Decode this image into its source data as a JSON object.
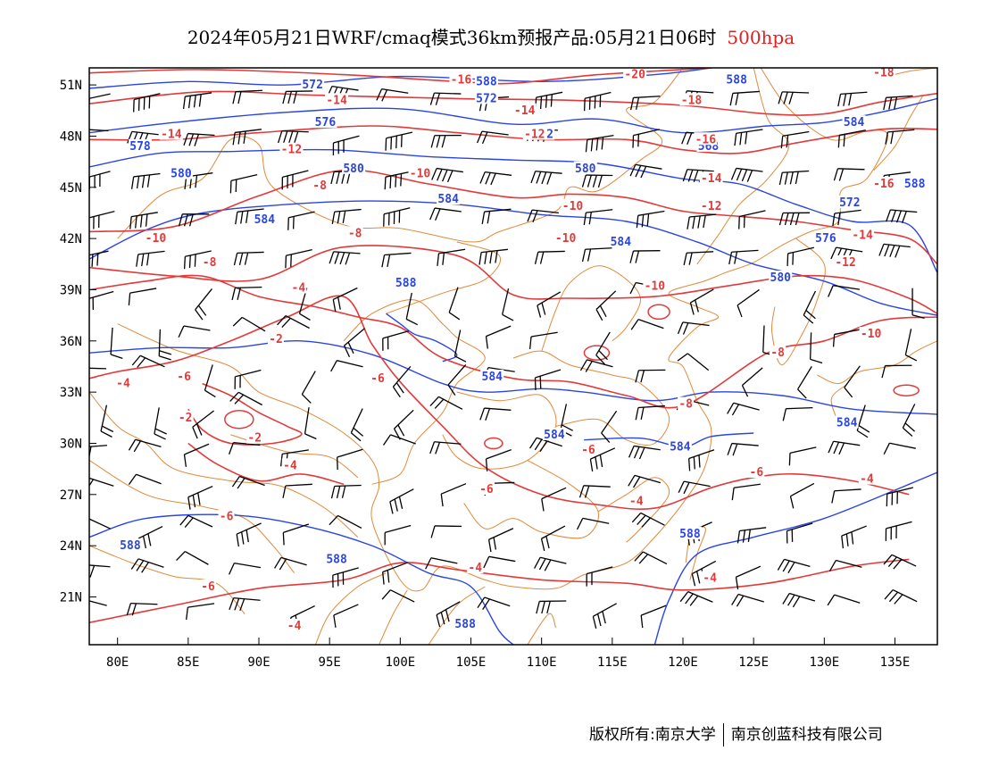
{
  "title": {
    "main": "2024年05月21日WRF/cmaq模式36km预报产品:05月21日06时",
    "level": "500hpa"
  },
  "colors": {
    "height_contour": "#2a45e0",
    "temperature_contour": "#e23a3a",
    "boundary": "#e08a3a",
    "wind_barb": "#000000",
    "level_text": "#e02020"
  },
  "map": {
    "lon_ticks": [
      "80E",
      "85E",
      "90E",
      "95E",
      "100E",
      "105E",
      "110E",
      "115E",
      "120E",
      "125E",
      "130E",
      "135E"
    ],
    "lat_ticks": [
      "51N",
      "48N",
      "45N",
      "42N",
      "39N",
      "36N",
      "33N",
      "30N",
      "27N",
      "24N",
      "21N"
    ],
    "lon_values": [
      80,
      85,
      90,
      95,
      100,
      105,
      110,
      115,
      120,
      125,
      130,
      135
    ],
    "lat_values": [
      51,
      48,
      45,
      42,
      39,
      36,
      33,
      30,
      27,
      24,
      21
    ],
    "lon_range": [
      78,
      138
    ],
    "lat_range": [
      18.2,
      52
    ]
  },
  "height_contours": [
    {
      "label": "572",
      "points": [
        [
          78,
          50.8
        ],
        [
          85,
          51.2
        ],
        [
          92,
          51
        ],
        [
          100,
          51.5
        ],
        [
          110,
          51.2
        ],
        [
          118,
          51.6
        ],
        [
          122,
          52
        ]
      ]
    },
    {
      "label": "576",
      "points": [
        [
          78,
          48.2
        ],
        [
          84,
          48.8
        ],
        [
          92,
          49.4
        ],
        [
          100,
          49.6
        ],
        [
          108,
          48.7
        ],
        [
          114,
          49
        ],
        [
          120,
          48.2
        ],
        [
          126,
          48.6
        ],
        [
          130,
          48.8
        ],
        [
          134,
          49.4
        ],
        [
          138,
          50.2
        ]
      ]
    },
    {
      "label": "580",
      "points": [
        [
          78,
          46.2
        ],
        [
          83,
          47
        ],
        [
          88,
          47.1
        ],
        [
          95,
          47.2
        ],
        [
          102,
          46.8
        ],
        [
          108,
          46.6
        ],
        [
          114,
          46.4
        ],
        [
          120,
          45.5
        ],
        [
          124,
          45.2
        ],
        [
          128,
          44
        ],
        [
          132,
          43
        ],
        [
          136,
          42.8
        ],
        [
          138,
          40
        ]
      ]
    },
    {
      "label": "584",
      "points": [
        [
          78,
          40.8
        ],
        [
          82,
          42.5
        ],
        [
          86,
          43.5
        ],
        [
          92,
          44
        ],
        [
          98,
          44.2
        ],
        [
          104,
          44
        ],
        [
          110,
          43.4
        ],
        [
          116,
          43
        ],
        [
          121,
          41.8
        ],
        [
          125,
          40.5
        ],
        [
          130,
          39.5
        ],
        [
          134,
          38.2
        ],
        [
          138,
          37.5
        ]
      ]
    },
    {
      "label": "588",
      "points": [
        [
          99,
          37.6
        ],
        [
          100,
          37
        ],
        [
          101,
          36.4
        ],
        [
          102.5,
          36
        ],
        [
          104,
          35.2
        ],
        [
          103,
          34.8
        ]
      ]
    },
    {
      "label": "584",
      "points": [
        [
          78,
          35.3
        ],
        [
          83,
          35.6
        ],
        [
          88,
          35.6
        ],
        [
          93,
          36
        ],
        [
          98,
          35.2
        ],
        [
          103,
          33.5
        ],
        [
          106,
          33
        ],
        [
          110,
          33.2
        ],
        [
          113,
          33
        ],
        [
          118,
          32.5
        ],
        [
          122,
          33
        ],
        [
          127,
          32.8
        ],
        [
          132,
          32
        ],
        [
          138,
          31.7
        ]
      ]
    },
    {
      "label": "584",
      "points": [
        [
          113,
          30.2
        ],
        [
          117,
          30.3
        ],
        [
          120,
          29.8
        ],
        [
          122,
          30.4
        ],
        [
          125,
          30.6
        ]
      ]
    },
    {
      "label": "588",
      "points": [
        [
          78,
          24.5
        ],
        [
          82,
          25.6
        ],
        [
          88,
          25.8
        ],
        [
          93,
          25.2
        ],
        [
          98,
          24
        ],
        [
          102,
          22.4
        ],
        [
          105,
          21.6
        ],
        [
          107,
          19
        ],
        [
          108,
          18.2
        ]
      ]
    },
    {
      "label": "588",
      "points": [
        [
          118,
          18.2
        ],
        [
          119,
          20.8
        ],
        [
          121,
          23.5
        ],
        [
          125,
          24.5
        ],
        [
          130,
          25.6
        ],
        [
          136,
          27.6
        ],
        [
          138,
          28.3
        ]
      ]
    }
  ],
  "temperature_contours": [
    {
      "label": "-16",
      "points": [
        [
          78,
          51.7
        ],
        [
          86,
          51.9
        ],
        [
          96,
          51.6
        ],
        [
          104,
          51.2
        ],
        [
          108,
          51.1
        ],
        [
          114,
          51.6
        ],
        [
          122,
          52
        ]
      ]
    },
    {
      "label": "-14",
      "points": [
        [
          78,
          49.9
        ],
        [
          86,
          50.6
        ],
        [
          94,
          50.4
        ],
        [
          104,
          50.2
        ],
        [
          112,
          50.1
        ],
        [
          120,
          49.8
        ],
        [
          126,
          49.3
        ],
        [
          130,
          49.3
        ],
        [
          134,
          50
        ],
        [
          138,
          50.5
        ]
      ]
    },
    {
      "label": "-12",
      "points": [
        [
          78,
          47.8
        ],
        [
          84,
          47.8
        ],
        [
          90,
          48.2
        ],
        [
          98,
          48.6
        ],
        [
          104,
          48.2
        ],
        [
          110,
          47.8
        ],
        [
          116,
          47.8
        ],
        [
          120,
          47.2
        ],
        [
          124,
          47
        ],
        [
          128,
          47.6
        ],
        [
          134,
          48.4
        ],
        [
          138,
          48.4
        ]
      ]
    },
    {
      "label": "-10",
      "points": [
        [
          78,
          42.4
        ],
        [
          84,
          42.7
        ],
        [
          90,
          44.5
        ],
        [
          96,
          46
        ],
        [
          102,
          45.2
        ],
        [
          108,
          44.4
        ],
        [
          112,
          44.6
        ],
        [
          116,
          44.4
        ],
        [
          120,
          43.6
        ],
        [
          124,
          43.3
        ],
        [
          128,
          43
        ],
        [
          132,
          42.5
        ],
        [
          136,
          42
        ],
        [
          138,
          40.5
        ]
      ]
    },
    {
      "label": "-8",
      "points": [
        [
          78,
          40.3
        ],
        [
          84,
          39.8
        ],
        [
          90,
          39.6
        ],
        [
          96,
          41.5
        ],
        [
          104,
          41
        ],
        [
          108,
          38.7
        ],
        [
          112,
          38.5
        ],
        [
          118,
          38.6
        ],
        [
          123,
          39.2
        ],
        [
          128,
          39.8
        ],
        [
          132,
          39.6
        ],
        [
          136,
          38.5
        ],
        [
          138,
          37.6
        ]
      ]
    },
    {
      "label": "-6",
      "points": [
        [
          78,
          39
        ],
        [
          82,
          39.5
        ],
        [
          86,
          39.8
        ],
        [
          90,
          38.6
        ],
        [
          94,
          38
        ],
        [
          97,
          37.4
        ],
        [
          100,
          36.8
        ],
        [
          103,
          35
        ],
        [
          108,
          33.8
        ],
        [
          112,
          33.6
        ],
        [
          116,
          32.8
        ],
        [
          120,
          32.2
        ],
        [
          126,
          35.3
        ],
        [
          130,
          36
        ],
        [
          134,
          37.2
        ],
        [
          138,
          37.4
        ]
      ]
    },
    {
      "label": "-4",
      "points": [
        [
          78,
          33.8
        ],
        [
          80,
          34.2
        ],
        [
          84,
          34.8
        ],
        [
          88,
          36
        ],
        [
          92,
          37.4
        ],
        [
          96,
          38.6
        ],
        [
          98,
          35.8
        ],
        [
          100,
          33.6
        ],
        [
          103,
          31
        ],
        [
          106,
          28.6
        ],
        [
          110,
          27
        ],
        [
          114,
          26.4
        ],
        [
          118,
          26.2
        ],
        [
          122,
          27.4
        ],
        [
          125,
          28
        ],
        [
          128,
          28.2
        ],
        [
          132,
          27.8
        ],
        [
          136,
          27
        ]
      ]
    },
    {
      "label": "-2",
      "points": [
        [
          86,
          33.5
        ],
        [
          88,
          32.8
        ],
        [
          90,
          31.8
        ],
        [
          92,
          31
        ],
        [
          93,
          30.5
        ],
        [
          91,
          30
        ],
        [
          88,
          30
        ],
        [
          86,
          30.8
        ],
        [
          85,
          32
        ]
      ]
    },
    {
      "label": "-4",
      "points": [
        [
          85,
          30
        ],
        [
          87,
          28.8
        ],
        [
          90,
          27.8
        ],
        [
          93,
          28.2
        ],
        [
          96,
          27.6
        ]
      ]
    },
    {
      "label": "-4",
      "points": [
        [
          78,
          19.5
        ],
        [
          84,
          20.5
        ],
        [
          90,
          21.5
        ],
        [
          96,
          22
        ],
        [
          100,
          23
        ],
        [
          104,
          22.6
        ],
        [
          110,
          22
        ],
        [
          116,
          21.8
        ],
        [
          120,
          21.4
        ],
        [
          126,
          21.8
        ],
        [
          132,
          22.8
        ],
        [
          136,
          23.2
        ]
      ]
    }
  ],
  "temperature_labels": [
    {
      "text": "-16",
      "lon": 104.3,
      "lat": 51.3
    },
    {
      "text": "-20",
      "lon": 116.6,
      "lat": 51.6
    },
    {
      "text": "-18",
      "lon": 120.6,
      "lat": 50.1
    },
    {
      "text": "-18",
      "lon": 134.2,
      "lat": 51.7
    },
    {
      "text": "-14",
      "lon": 95.5,
      "lat": 50.1
    },
    {
      "text": "-14",
      "lon": 108.8,
      "lat": 49.5
    },
    {
      "text": "-14",
      "lon": 83.8,
      "lat": 48.1
    },
    {
      "text": "-12",
      "lon": 92.3,
      "lat": 47.2
    },
    {
      "text": "-12",
      "lon": 109.5,
      "lat": 48.1
    },
    {
      "text": "-16",
      "lon": 121.6,
      "lat": 47.8
    },
    {
      "text": "-14",
      "lon": 122,
      "lat": 45.5
    },
    {
      "text": "-12",
      "lon": 122,
      "lat": 43.9
    },
    {
      "text": "-16",
      "lon": 134.2,
      "lat": 45.2
    },
    {
      "text": "-10",
      "lon": 101.4,
      "lat": 45.8
    },
    {
      "text": "-10",
      "lon": 112.2,
      "lat": 43.9
    },
    {
      "text": "-14",
      "lon": 132.7,
      "lat": 42.2
    },
    {
      "text": "-12",
      "lon": 131.5,
      "lat": 40.6
    },
    {
      "text": "-10",
      "lon": 82.7,
      "lat": 42
    },
    {
      "text": "-8",
      "lon": 94.3,
      "lat": 45.1
    },
    {
      "text": "-8",
      "lon": 96.8,
      "lat": 42.3
    },
    {
      "text": "-8",
      "lon": 86.5,
      "lat": 40.6
    },
    {
      "text": "-4",
      "lon": 92.8,
      "lat": 39.1
    },
    {
      "text": "-10",
      "lon": 111.7,
      "lat": 42
    },
    {
      "text": "-10",
      "lon": 118,
      "lat": 39.2
    },
    {
      "text": "-10",
      "lon": 133.3,
      "lat": 36.4
    },
    {
      "text": "-8",
      "lon": 126.7,
      "lat": 35.3
    },
    {
      "text": "-2",
      "lon": 91.2,
      "lat": 36.1
    },
    {
      "text": "-6",
      "lon": 84.7,
      "lat": 33.9
    },
    {
      "text": "-6",
      "lon": 98.4,
      "lat": 33.8
    },
    {
      "text": "-4",
      "lon": 80.4,
      "lat": 33.5
    },
    {
      "text": "-8",
      "lon": 120.2,
      "lat": 32.3
    },
    {
      "text": "-2",
      "lon": 84.8,
      "lat": 31.5
    },
    {
      "text": "-2",
      "lon": 89.7,
      "lat": 30.3
    },
    {
      "text": "-6",
      "lon": 113.3,
      "lat": 29.6
    },
    {
      "text": "-4",
      "lon": 92.2,
      "lat": 28.7
    },
    {
      "text": "-6",
      "lon": 125.2,
      "lat": 28.3
    },
    {
      "text": "-4",
      "lon": 133,
      "lat": 27.9
    },
    {
      "text": "-6",
      "lon": 106.1,
      "lat": 27.3
    },
    {
      "text": "-4",
      "lon": 116.7,
      "lat": 26.6
    },
    {
      "text": "-6",
      "lon": 87.7,
      "lat": 25.7
    },
    {
      "text": "-4",
      "lon": 105.3,
      "lat": 22.7
    },
    {
      "text": "-4",
      "lon": 121.9,
      "lat": 22.1
    },
    {
      "text": "-6",
      "lon": 86.4,
      "lat": 21.6
    },
    {
      "text": "-4",
      "lon": 92.5,
      "lat": 19.3
    }
  ],
  "height_labels": [
    {
      "text": "572",
      "lon": 93.8,
      "lat": 51.0
    },
    {
      "text": "588",
      "lon": 106.1,
      "lat": 51.2
    },
    {
      "text": "572",
      "lon": 106.1,
      "lat": 50.2
    },
    {
      "text": "588",
      "lon": 123.8,
      "lat": 51.3
    },
    {
      "text": "576",
      "lon": 94.7,
      "lat": 48.8
    },
    {
      "text": "572",
      "lon": 110.1,
      "lat": 48.1
    },
    {
      "text": "584",
      "lon": 132.1,
      "lat": 48.8
    },
    {
      "text": "578",
      "lon": 81.6,
      "lat": 47.4
    },
    {
      "text": "568",
      "lon": 121.8,
      "lat": 47.4
    },
    {
      "text": "580",
      "lon": 96.7,
      "lat": 46.1
    },
    {
      "text": "580",
      "lon": 113.1,
      "lat": 46.1
    },
    {
      "text": "580",
      "lon": 84.5,
      "lat": 45.8
    },
    {
      "text": "588",
      "lon": 136.4,
      "lat": 45.2
    },
    {
      "text": "584",
      "lon": 103.4,
      "lat": 44.3
    },
    {
      "text": "572",
      "lon": 131.8,
      "lat": 44.1
    },
    {
      "text": "584",
      "lon": 90.4,
      "lat": 43.1
    },
    {
      "text": "584",
      "lon": 115.6,
      "lat": 41.8
    },
    {
      "text": "576",
      "lon": 130.1,
      "lat": 42.0
    },
    {
      "text": "580",
      "lon": 126.9,
      "lat": 39.7
    },
    {
      "text": "588",
      "lon": 100.4,
      "lat": 39.4
    },
    {
      "text": "584",
      "lon": 106.5,
      "lat": 33.9
    },
    {
      "text": "584",
      "lon": 131.6,
      "lat": 31.2
    },
    {
      "text": "584",
      "lon": 110.9,
      "lat": 30.5
    },
    {
      "text": "584",
      "lon": 119.8,
      "lat": 29.8
    },
    {
      "text": "588",
      "lon": 80.9,
      "lat": 24.0
    },
    {
      "text": "588",
      "lon": 95.5,
      "lat": 23.2
    },
    {
      "text": "588",
      "lon": 120.5,
      "lat": 24.7
    },
    {
      "text": "588",
      "lon": 104.6,
      "lat": 19.4
    }
  ],
  "footer": {
    "left": "版权所有:南京大学",
    "right": "南京创蓝科技有限公司"
  }
}
